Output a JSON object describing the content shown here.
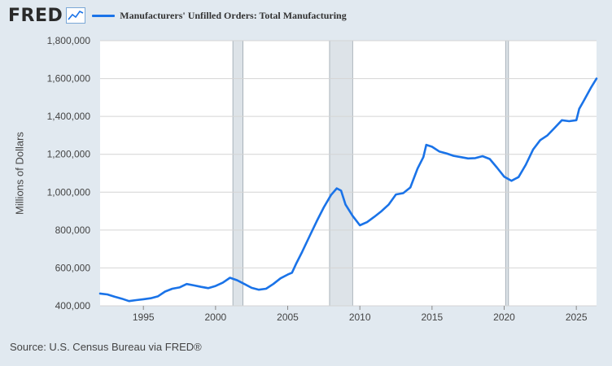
{
  "header": {
    "logo": "FRED",
    "logo_icon": "trend-line-icon"
  },
  "source": "Source: U.S. Census Bureau via FRED®",
  "chart_data": {
    "type": "line",
    "title": "",
    "xlabel": "",
    "ylabel": "Millions of Dollars",
    "xlim": [
      1992.0,
      2026.4
    ],
    "ylim": [
      400000,
      1800000
    ],
    "x_ticks": [
      {
        "value": 1995,
        "label": "1995"
      },
      {
        "value": 2000,
        "label": "2000"
      },
      {
        "value": 2005,
        "label": "2005"
      },
      {
        "value": 2010,
        "label": "2010"
      },
      {
        "value": 2015,
        "label": "2015"
      },
      {
        "value": 2020,
        "label": "2020"
      },
      {
        "value": 2025,
        "label": "2025"
      }
    ],
    "y_ticks": [
      {
        "value": 400000,
        "label": "400,000"
      },
      {
        "value": 600000,
        "label": "600,000"
      },
      {
        "value": 800000,
        "label": "800,000"
      },
      {
        "value": 1000000,
        "label": "1,000,000"
      },
      {
        "value": 1200000,
        "label": "1,200,000"
      },
      {
        "value": 1400000,
        "label": "1,400,000"
      },
      {
        "value": 1600000,
        "label": "1,600,000"
      },
      {
        "value": 1800000,
        "label": "1,800,000"
      }
    ],
    "grid": true,
    "legend_position": "top",
    "recessions": [
      [
        2001.2,
        2001.9
      ],
      [
        2007.9,
        2009.5
      ],
      [
        2020.1,
        2020.3
      ]
    ],
    "series": [
      {
        "name": "Manufacturers' Unfilled Orders: Total Manufacturing",
        "color": "#1a73e8",
        "points": [
          [
            1992.0,
            465000
          ],
          [
            1992.5,
            460000
          ],
          [
            1993.0,
            448000
          ],
          [
            1993.5,
            438000
          ],
          [
            1994.0,
            425000
          ],
          [
            1994.5,
            430000
          ],
          [
            1995.0,
            435000
          ],
          [
            1995.5,
            440000
          ],
          [
            1996.0,
            450000
          ],
          [
            1996.5,
            475000
          ],
          [
            1997.0,
            490000
          ],
          [
            1997.5,
            497000
          ],
          [
            1998.0,
            515000
          ],
          [
            1998.5,
            508000
          ],
          [
            1999.0,
            500000
          ],
          [
            1999.5,
            493000
          ],
          [
            2000.0,
            505000
          ],
          [
            2000.5,
            522000
          ],
          [
            2001.0,
            548000
          ],
          [
            2001.5,
            535000
          ],
          [
            2002.0,
            515000
          ],
          [
            2002.5,
            495000
          ],
          [
            2003.0,
            485000
          ],
          [
            2003.5,
            490000
          ],
          [
            2004.0,
            515000
          ],
          [
            2004.5,
            545000
          ],
          [
            2005.0,
            565000
          ],
          [
            2005.3,
            575000
          ],
          [
            2005.6,
            625000
          ],
          [
            2006.0,
            685000
          ],
          [
            2006.5,
            765000
          ],
          [
            2007.0,
            845000
          ],
          [
            2007.5,
            920000
          ],
          [
            2008.0,
            985000
          ],
          [
            2008.4,
            1020000
          ],
          [
            2008.7,
            1008000
          ],
          [
            2009.0,
            935000
          ],
          [
            2009.5,
            875000
          ],
          [
            2010.0,
            825000
          ],
          [
            2010.5,
            842000
          ],
          [
            2011.0,
            870000
          ],
          [
            2011.5,
            900000
          ],
          [
            2012.0,
            935000
          ],
          [
            2012.5,
            988000
          ],
          [
            2013.0,
            995000
          ],
          [
            2013.5,
            1025000
          ],
          [
            2014.0,
            1125000
          ],
          [
            2014.4,
            1185000
          ],
          [
            2014.6,
            1250000
          ],
          [
            2015.0,
            1240000
          ],
          [
            2015.5,
            1215000
          ],
          [
            2016.0,
            1205000
          ],
          [
            2016.5,
            1192000
          ],
          [
            2017.0,
            1185000
          ],
          [
            2017.5,
            1178000
          ],
          [
            2018.0,
            1180000
          ],
          [
            2018.5,
            1190000
          ],
          [
            2019.0,
            1175000
          ],
          [
            2019.5,
            1130000
          ],
          [
            2020.0,
            1082000
          ],
          [
            2020.5,
            1060000
          ],
          [
            2021.0,
            1080000
          ],
          [
            2021.5,
            1145000
          ],
          [
            2022.0,
            1225000
          ],
          [
            2022.5,
            1275000
          ],
          [
            2023.0,
            1300000
          ],
          [
            2023.5,
            1340000
          ],
          [
            2024.0,
            1380000
          ],
          [
            2024.5,
            1375000
          ],
          [
            2025.0,
            1380000
          ],
          [
            2025.2,
            1440000
          ],
          [
            2025.5,
            1480000
          ],
          [
            2026.0,
            1550000
          ],
          [
            2026.4,
            1600000
          ]
        ]
      }
    ]
  }
}
